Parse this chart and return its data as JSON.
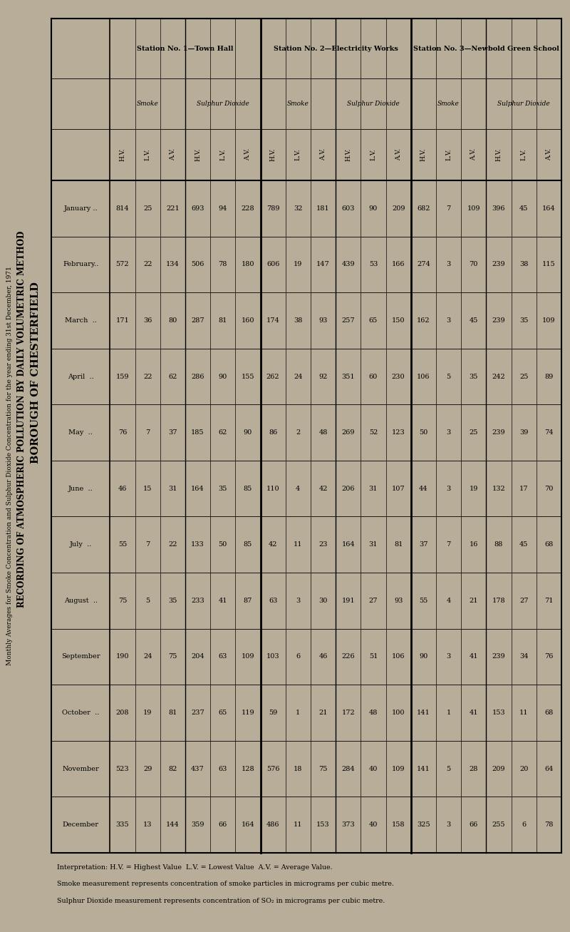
{
  "title1": "BOROUGH OF CHESTERFIELD",
  "title2": "RECORDING OF ATMOSPHERIC POLLUTION BY DAILY VOLUMETRIC METHOD",
  "subtitle": "Monthly Averages for Smoke Concentration and Sulphur Dioxide Concentration for the year ending 31st December, 1971",
  "background_color": "#b8ad98",
  "months": [
    "January ..",
    "February..",
    "March  ..",
    "April  ..",
    "May  ..",
    "June  ..",
    "July  ..",
    "August  ..",
    "September",
    "October  ..",
    "November",
    "December"
  ],
  "station1_smoke_hv": [
    814,
    572,
    171,
    159,
    76,
    46,
    55,
    75,
    190,
    208,
    523,
    335
  ],
  "station1_smoke_lv": [
    25,
    22,
    36,
    22,
    7,
    15,
    7,
    5,
    24,
    19,
    29,
    13
  ],
  "station1_smoke_av": [
    221,
    134,
    80,
    62,
    37,
    31,
    22,
    35,
    75,
    81,
    82,
    144
  ],
  "station1_so2_hv": [
    693,
    506,
    287,
    286,
    185,
    164,
    133,
    233,
    204,
    237,
    437,
    359
  ],
  "station1_so2_lv": [
    94,
    78,
    81,
    90,
    62,
    35,
    50,
    41,
    63,
    65,
    63,
    66
  ],
  "station1_so2_av": [
    228,
    180,
    160,
    155,
    90,
    85,
    85,
    87,
    109,
    119,
    128,
    164
  ],
  "station2_smoke_hv": [
    789,
    606,
    174,
    262,
    86,
    110,
    42,
    63,
    103,
    59,
    576,
    486
  ],
  "station2_smoke_lv": [
    32,
    19,
    38,
    24,
    2,
    4,
    11,
    3,
    6,
    1,
    18,
    11
  ],
  "station2_smoke_av": [
    181,
    147,
    93,
    92,
    48,
    42,
    23,
    30,
    46,
    21,
    75,
    153
  ],
  "station2_so2_hv": [
    603,
    439,
    257,
    351,
    269,
    206,
    164,
    191,
    226,
    172,
    284,
    373
  ],
  "station2_so2_lv": [
    90,
    53,
    65,
    60,
    52,
    31,
    31,
    27,
    51,
    48,
    40,
    40
  ],
  "station2_so2_av": [
    209,
    166,
    150,
    230,
    123,
    107,
    81,
    93,
    106,
    100,
    109,
    158
  ],
  "station3_smoke_hv": [
    682,
    274,
    162,
    106,
    50,
    44,
    37,
    55,
    90,
    141,
    141,
    325
  ],
  "station3_smoke_lv": [
    7,
    3,
    3,
    5,
    3,
    3,
    7,
    4,
    3,
    1,
    5,
    3
  ],
  "station3_smoke_av": [
    109,
    70,
    45,
    35,
    25,
    19,
    16,
    21,
    41,
    41,
    28,
    66
  ],
  "station3_so2_hv": [
    396,
    239,
    239,
    242,
    239,
    132,
    88,
    178,
    239,
    153,
    209,
    255
  ],
  "station3_so2_lv": [
    45,
    38,
    35,
    25,
    39,
    17,
    45,
    27,
    34,
    11,
    20,
    6
  ],
  "station3_so2_av": [
    164,
    115,
    109,
    89,
    74,
    70,
    68,
    71,
    76,
    68,
    64,
    78
  ],
  "interp_line1": "Interpretation: H.V. = Highest Value  L.V. = Lowest Value  A.V. = Average Value.",
  "interp_line2": "Smoke measurement represents concentration of smoke particles in micrograms per cubic metre.",
  "interp_line3": "Sulphur Dioxide measurement represents concentration of SO₂ in micrograms per cubic metre."
}
